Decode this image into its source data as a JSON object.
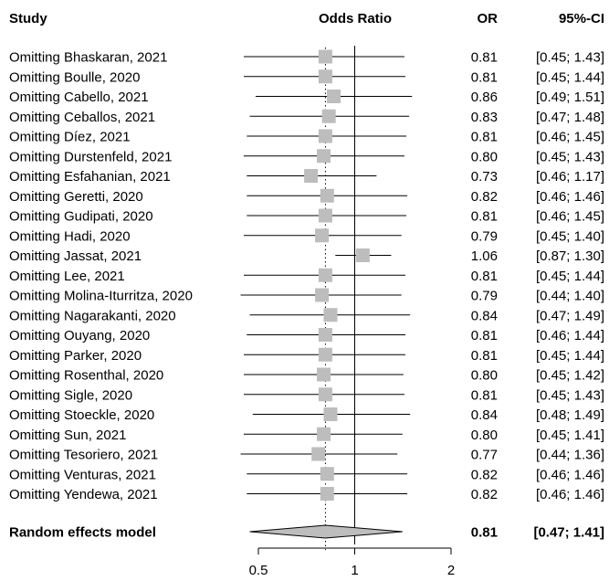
{
  "chart_data": {
    "type": "forest",
    "headers": {
      "study": "Study",
      "effect": "Odds Ratio",
      "or": "OR",
      "ci": "95%-CI"
    },
    "scale": "log",
    "xlim": [
      0.5,
      2
    ],
    "null_value": 1,
    "xticks": [
      {
        "value": 0.5,
        "label": "0.5"
      },
      {
        "value": 1,
        "label": "1"
      },
      {
        "value": 2,
        "label": "2"
      }
    ],
    "studies": [
      {
        "label": "Omitting Bhaskaran, 2021",
        "or": 0.81,
        "lower": 0.45,
        "upper": 1.43,
        "or_text": "0.81",
        "ci_text": "[0.45; 1.43]"
      },
      {
        "label": "Omitting Boulle, 2020",
        "or": 0.81,
        "lower": 0.45,
        "upper": 1.44,
        "or_text": "0.81",
        "ci_text": "[0.45; 1.44]"
      },
      {
        "label": "Omitting Cabello, 2021",
        "or": 0.86,
        "lower": 0.49,
        "upper": 1.51,
        "or_text": "0.86",
        "ci_text": "[0.49; 1.51]"
      },
      {
        "label": "Omitting Ceballos, 2021",
        "or": 0.83,
        "lower": 0.47,
        "upper": 1.48,
        "or_text": "0.83",
        "ci_text": "[0.47; 1.48]"
      },
      {
        "label": "Omitting Díez, 2021",
        "or": 0.81,
        "lower": 0.46,
        "upper": 1.45,
        "or_text": "0.81",
        "ci_text": "[0.46; 1.45]"
      },
      {
        "label": "Omitting Durstenfeld, 2021",
        "or": 0.8,
        "lower": 0.45,
        "upper": 1.43,
        "or_text": "0.80",
        "ci_text": "[0.45; 1.43]"
      },
      {
        "label": "Omitting Esfahanian, 2021",
        "or": 0.73,
        "lower": 0.46,
        "upper": 1.17,
        "or_text": "0.73",
        "ci_text": "[0.46; 1.17]"
      },
      {
        "label": "Omitting Geretti, 2020",
        "or": 0.82,
        "lower": 0.46,
        "upper": 1.46,
        "or_text": "0.82",
        "ci_text": "[0.46; 1.46]"
      },
      {
        "label": "Omitting Gudipati, 2020",
        "or": 0.81,
        "lower": 0.46,
        "upper": 1.45,
        "or_text": "0.81",
        "ci_text": "[0.46; 1.45]"
      },
      {
        "label": "Omitting Hadi, 2020",
        "or": 0.79,
        "lower": 0.45,
        "upper": 1.4,
        "or_text": "0.79",
        "ci_text": "[0.45; 1.40]"
      },
      {
        "label": "Omitting Jassat, 2021",
        "or": 1.06,
        "lower": 0.87,
        "upper": 1.3,
        "or_text": "1.06",
        "ci_text": "[0.87; 1.30]"
      },
      {
        "label": "Omitting Lee, 2021",
        "or": 0.81,
        "lower": 0.45,
        "upper": 1.44,
        "or_text": "0.81",
        "ci_text": "[0.45; 1.44]"
      },
      {
        "label": "Omitting Molina-Iturritza, 2020",
        "or": 0.79,
        "lower": 0.44,
        "upper": 1.4,
        "or_text": "0.79",
        "ci_text": "[0.44; 1.40]"
      },
      {
        "label": "Omitting Nagarakanti, 2020",
        "or": 0.84,
        "lower": 0.47,
        "upper": 1.49,
        "or_text": "0.84",
        "ci_text": "[0.47; 1.49]"
      },
      {
        "label": "Omitting Ouyang, 2020",
        "or": 0.81,
        "lower": 0.46,
        "upper": 1.44,
        "or_text": "0.81",
        "ci_text": "[0.46; 1.44]"
      },
      {
        "label": "Omitting Parker, 2020",
        "or": 0.81,
        "lower": 0.45,
        "upper": 1.44,
        "or_text": "0.81",
        "ci_text": "[0.45; 1.44]"
      },
      {
        "label": "Omitting Rosenthal, 2020",
        "or": 0.8,
        "lower": 0.45,
        "upper": 1.42,
        "or_text": "0.80",
        "ci_text": "[0.45; 1.42]"
      },
      {
        "label": "Omitting Sigle, 2020",
        "or": 0.81,
        "lower": 0.45,
        "upper": 1.43,
        "or_text": "0.81",
        "ci_text": "[0.45; 1.43]"
      },
      {
        "label": "Omitting Stoeckle, 2020",
        "or": 0.84,
        "lower": 0.48,
        "upper": 1.49,
        "or_text": "0.84",
        "ci_text": "[0.48; 1.49]"
      },
      {
        "label": "Omitting Sun, 2021",
        "or": 0.8,
        "lower": 0.45,
        "upper": 1.41,
        "or_text": "0.80",
        "ci_text": "[0.45; 1.41]"
      },
      {
        "label": "Omitting Tesoriero, 2021",
        "or": 0.77,
        "lower": 0.44,
        "upper": 1.36,
        "or_text": "0.77",
        "ci_text": "[0.44; 1.36]"
      },
      {
        "label": "Omitting Venturas, 2021",
        "or": 0.82,
        "lower": 0.46,
        "upper": 1.46,
        "or_text": "0.82",
        "ci_text": "[0.46; 1.46]"
      },
      {
        "label": "Omitting Yendewa, 2021",
        "or": 0.82,
        "lower": 0.46,
        "upper": 1.46,
        "or_text": "0.82",
        "ci_text": "[0.46; 1.46]"
      }
    ],
    "pooled": {
      "label": "Random effects model",
      "or": 0.81,
      "lower": 0.47,
      "upper": 1.41,
      "or_text": "0.81",
      "ci_text": "[0.47; 1.41]"
    },
    "colors": {
      "box": "#bdbdbd",
      "diamond": "#bdbdbd",
      "line": "#000000"
    }
  }
}
